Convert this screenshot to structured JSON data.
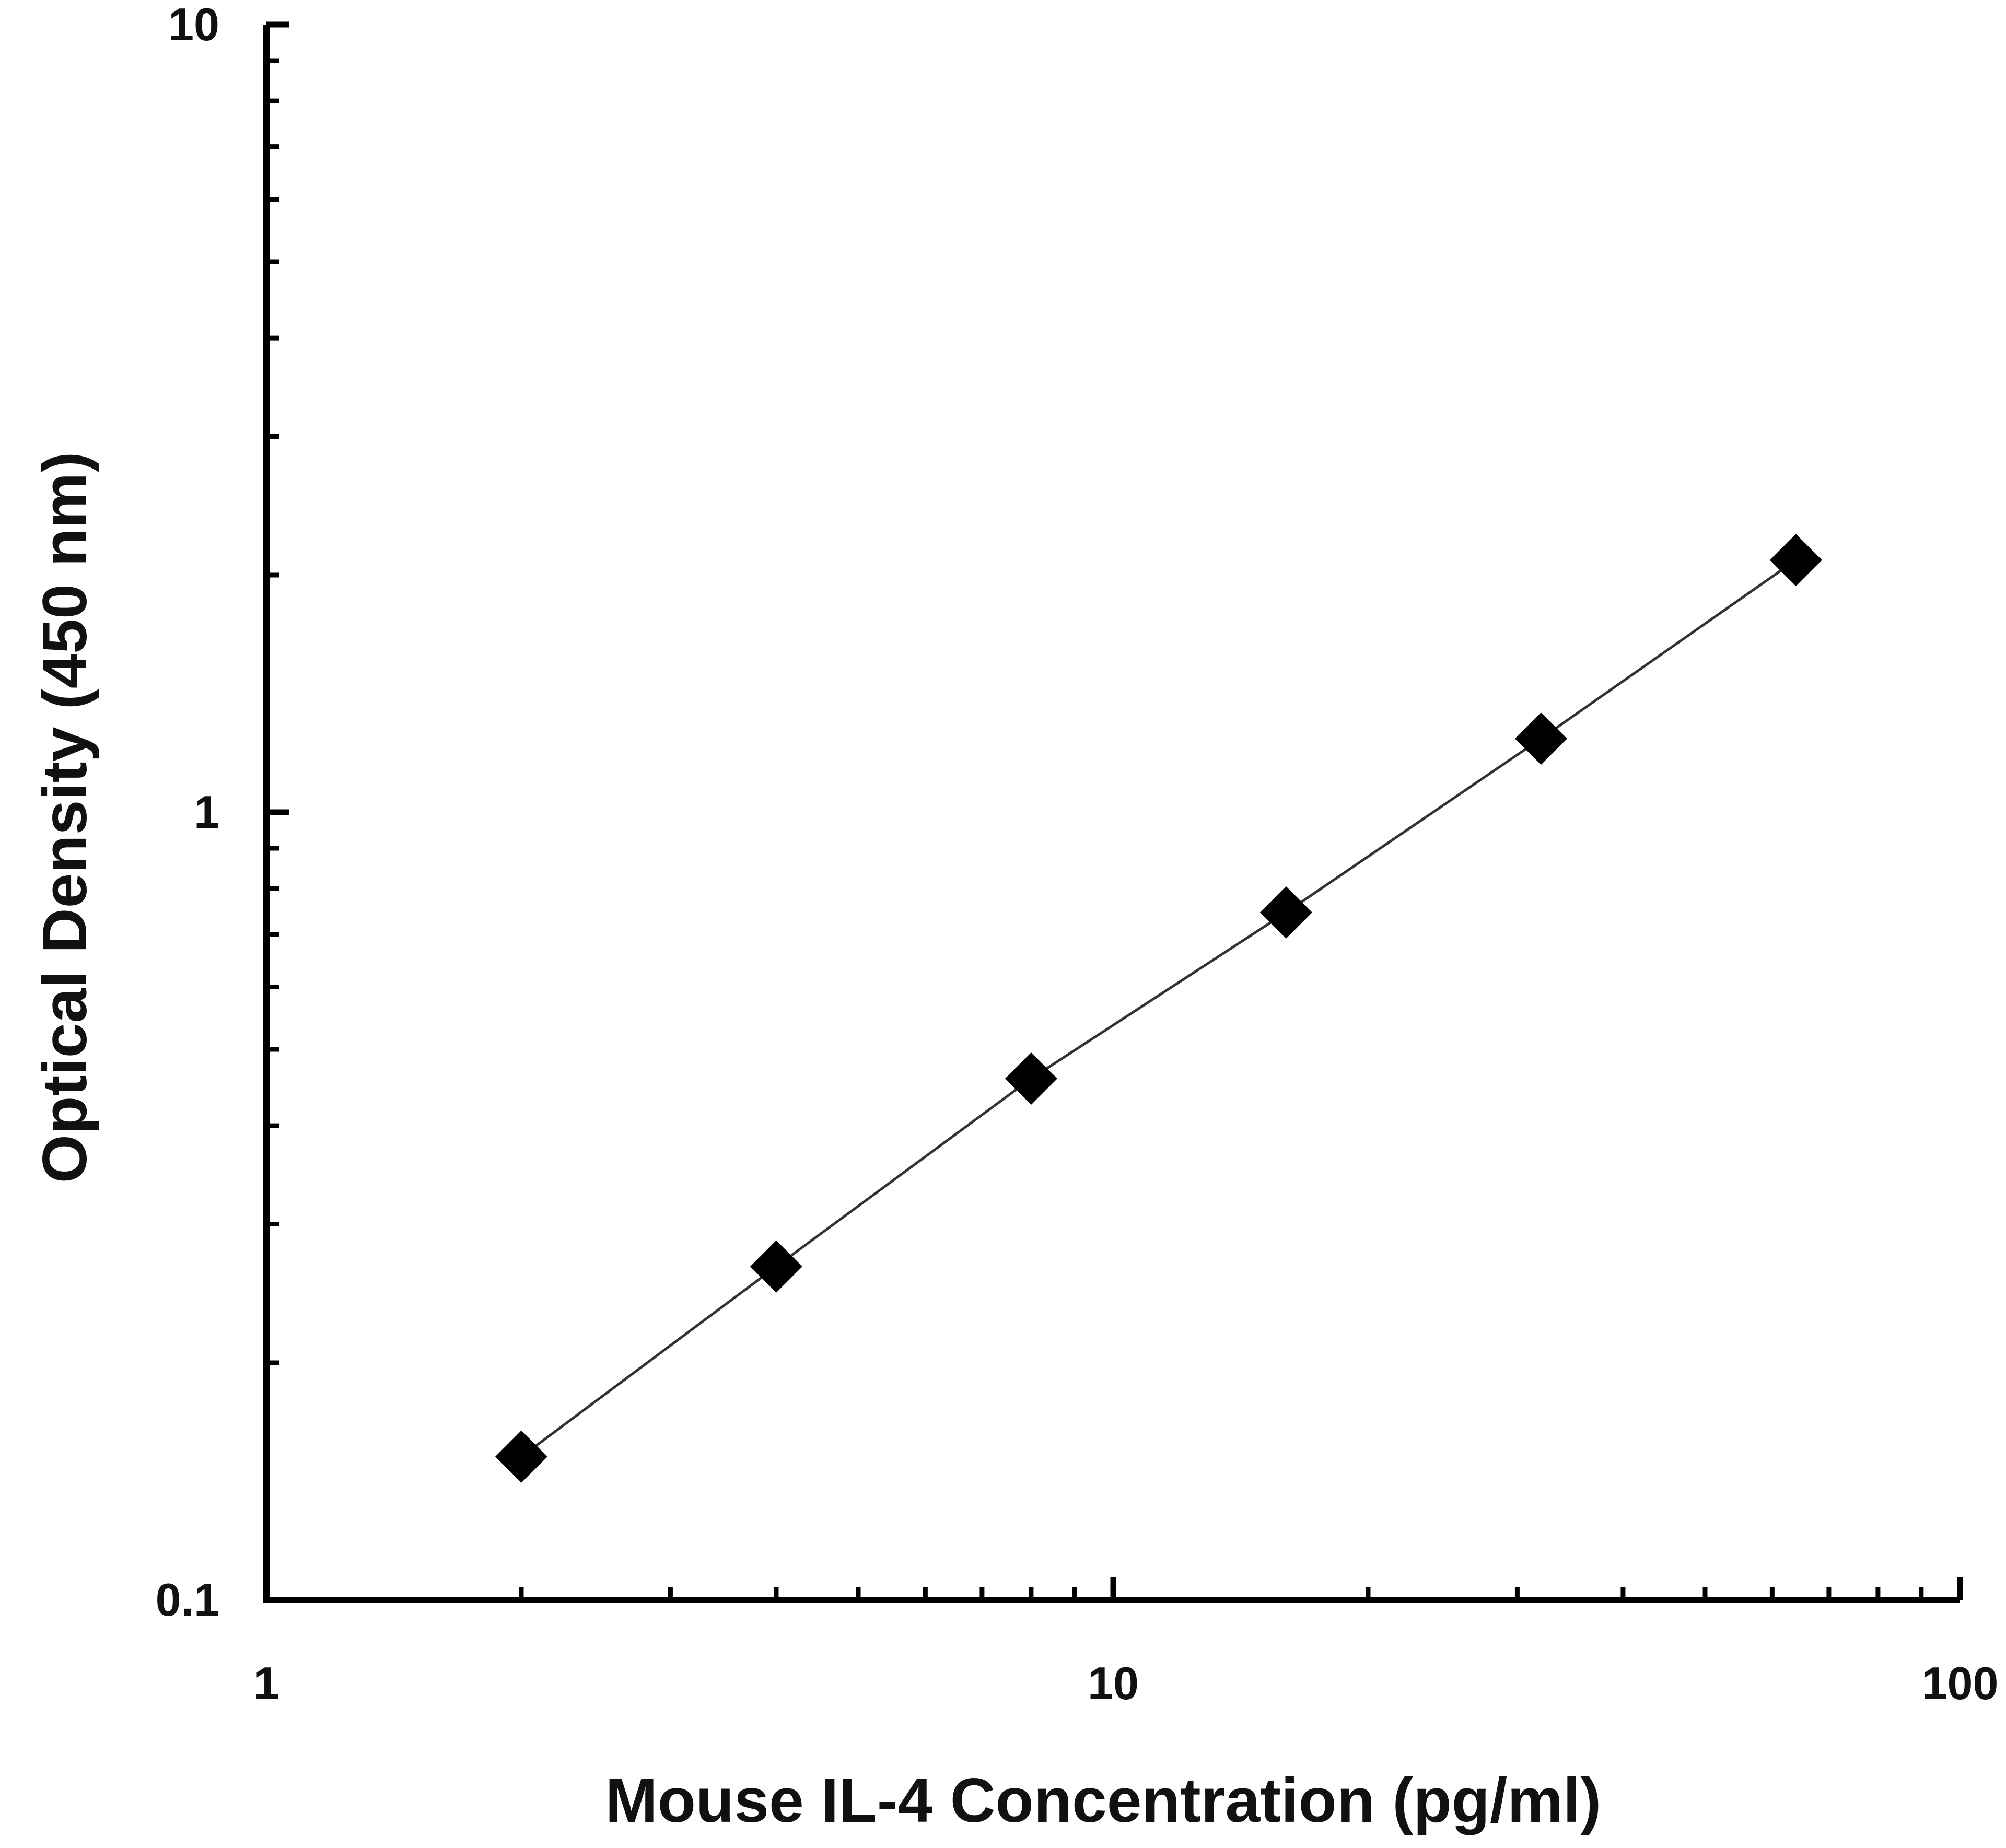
{
  "chart_data": {
    "type": "scatter",
    "title": "",
    "xlabel": "Mouse IL-4 Concentration (pg/ml)",
    "ylabel": "Optical Density (450 nm)",
    "xscale": "log",
    "yscale": "log",
    "xlim": [
      1,
      100
    ],
    "ylim": [
      0.1,
      10
    ],
    "x_tick_labels": [
      "1",
      "10",
      "100"
    ],
    "y_tick_labels": [
      "0.1",
      "1",
      "10"
    ],
    "grid": false,
    "legend": "none",
    "marker": "diamond",
    "connect_points": true,
    "series": [
      {
        "x": [
          2,
          4,
          8,
          16,
          32,
          64
        ],
        "y": [
          0.152,
          0.265,
          0.459,
          0.746,
          1.24,
          2.09
        ]
      }
    ],
    "colors": {
      "marker": "#000000",
      "line": "#333333",
      "axis": "#000000"
    }
  }
}
